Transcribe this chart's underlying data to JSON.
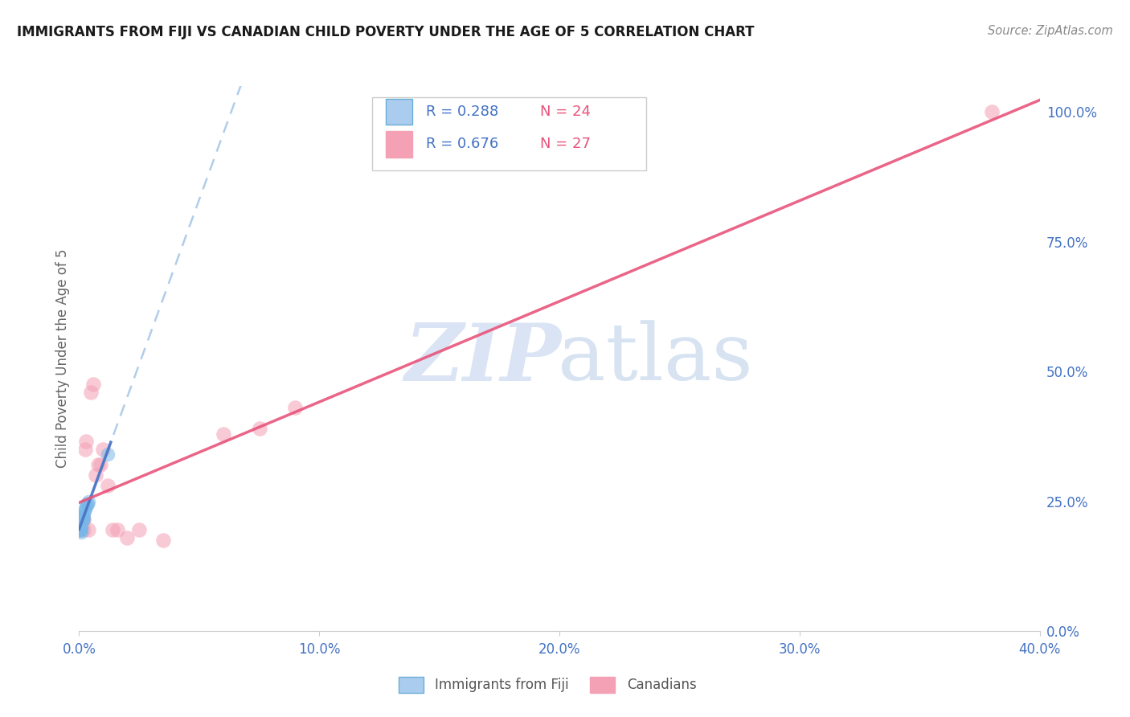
{
  "title": "IMMIGRANTS FROM FIJI VS CANADIAN CHILD POVERTY UNDER THE AGE OF 5 CORRELATION CHART",
  "source": "Source: ZipAtlas.com",
  "ylabel_label": "Child Poverty Under the Age of 5",
  "legend_bottom_labels": [
    "Immigrants from Fiji",
    "Canadians"
  ],
  "R_blue": "R = 0.288",
  "N_blue": "N = 24",
  "R_pink": "R = 0.676",
  "N_pink": "N = 27",
  "blue_scatter_x": [
    0.0002,
    0.0003,
    0.0004,
    0.0005,
    0.0006,
    0.0007,
    0.0008,
    0.0009,
    0.001,
    0.0012,
    0.0013,
    0.0014,
    0.0015,
    0.0016,
    0.0017,
    0.0018,
    0.002,
    0.0022,
    0.0025,
    0.003,
    0.0032,
    0.0035,
    0.004,
    0.012
  ],
  "blue_scatter_y": [
    0.195,
    0.195,
    0.2,
    0.195,
    0.2,
    0.2,
    0.195,
    0.19,
    0.22,
    0.215,
    0.22,
    0.215,
    0.215,
    0.22,
    0.22,
    0.215,
    0.225,
    0.23,
    0.235,
    0.24,
    0.245,
    0.245,
    0.25,
    0.34
  ],
  "pink_scatter_x": [
    0.0003,
    0.0005,
    0.0008,
    0.001,
    0.0012,
    0.0015,
    0.0018,
    0.002,
    0.0025,
    0.003,
    0.004,
    0.005,
    0.006,
    0.007,
    0.008,
    0.009,
    0.01,
    0.012,
    0.014,
    0.016,
    0.02,
    0.025,
    0.035,
    0.06,
    0.075,
    0.09,
    0.38
  ],
  "pink_scatter_y": [
    0.195,
    0.2,
    0.215,
    0.2,
    0.22,
    0.215,
    0.215,
    0.195,
    0.35,
    0.365,
    0.195,
    0.46,
    0.475,
    0.3,
    0.32,
    0.32,
    0.35,
    0.28,
    0.195,
    0.195,
    0.18,
    0.195,
    0.175,
    0.38,
    0.39,
    0.43,
    1.0
  ],
  "xlim": [
    0.0,
    0.4
  ],
  "ylim": [
    0.0,
    1.05
  ],
  "x_ticks": [
    0.0,
    0.1,
    0.2,
    0.3,
    0.4
  ],
  "y_ticks": [
    0.0,
    0.25,
    0.5,
    0.75,
    1.0
  ],
  "background_color": "#ffffff",
  "grid_color": "#d8d8d8",
  "axis_label_color": "#4472c4",
  "title_color": "#1a1a1a",
  "source_color": "#888888",
  "ylabel_color": "#666666",
  "blue_scatter_color": "#7ab8e8",
  "pink_scatter_color": "#f4a0b5",
  "blue_line_color": "#4472c4",
  "pink_line_color": "#e8547a",
  "blue_dash_color": "#a8c8e8",
  "watermark_zip_color": "#ccd9f0",
  "watermark_atlas_color": "#b8cce8"
}
